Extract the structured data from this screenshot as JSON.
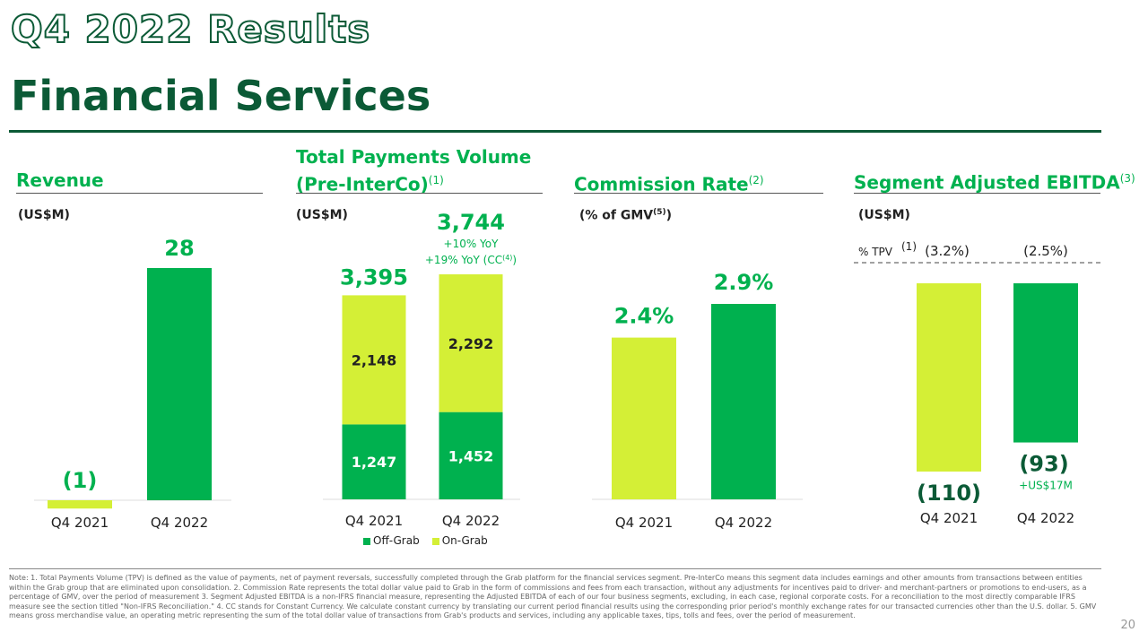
{
  "header": {
    "title_line1": "Q4 2022 Results",
    "title_line2": "Financial Services"
  },
  "colors": {
    "dark_green": "#0b5a36",
    "green": "#00b14f",
    "lime": "#d4ef36"
  },
  "panels": {
    "revenue": {
      "title": "Revenue",
      "unit": "(US$M)"
    },
    "tpv": {
      "title_line1": "Total Payments Volume",
      "title_line2": "(Pre-InterCo)",
      "title_sup": "(1)",
      "unit": "(US$M)",
      "legend_off": "Off-Grab",
      "legend_on": "On-Grab"
    },
    "commission": {
      "title": "Commission Rate",
      "title_sup": "(2)",
      "unit": "(% of GMV",
      "unit_sup": "(5)",
      "unit_close": ")"
    },
    "ebitda": {
      "title": "Segment Adjusted EBITDA",
      "title_sup": "(3)",
      "unit": "(US$M)",
      "tpv_label": "% TPV",
      "tpv_label_sup": "(1)"
    }
  },
  "chart_data": [
    {
      "type": "bar",
      "title": "Revenue",
      "ylabel": "US$M",
      "categories": [
        "Q4 2021",
        "Q4 2022"
      ],
      "values": [
        -1,
        28
      ],
      "value_labels": [
        "(1)",
        "28"
      ]
    },
    {
      "type": "bar",
      "title": "Total Payments Volume (Pre-InterCo)",
      "ylabel": "US$M",
      "stacked": true,
      "categories": [
        "Q4 2021",
        "Q4 2022"
      ],
      "series": [
        {
          "name": "Off-Grab",
          "values": [
            1247,
            1452
          ],
          "labels": [
            "1,247",
            "1,452"
          ]
        },
        {
          "name": "On-Grab",
          "values": [
            2148,
            2292
          ],
          "labels": [
            "2,148",
            "2,292"
          ]
        }
      ],
      "totals": [
        3395,
        3744
      ],
      "total_labels": [
        "3,395",
        "3,744"
      ],
      "annotations": [
        "+10% YoY",
        "+19% YoY (CC",
        "(4)",
        ")"
      ]
    },
    {
      "type": "bar",
      "title": "Commission Rate",
      "ylabel": "% of GMV",
      "categories": [
        "Q4 2021",
        "Q4 2022"
      ],
      "values": [
        2.4,
        2.9
      ],
      "value_labels": [
        "2.4%",
        "2.9%"
      ]
    },
    {
      "type": "bar",
      "title": "Segment Adjusted EBITDA",
      "ylabel": "US$M",
      "categories": [
        "Q4 2021",
        "Q4 2022"
      ],
      "values": [
        -110,
        -93
      ],
      "value_labels": [
        "(110)",
        "(93)"
      ],
      "pct_tpv": [
        "(3.2%)",
        "(2.5%)"
      ],
      "annotations": [
        "+US$17M"
      ]
    }
  ],
  "footnote": "Note: 1. Total Payments Volume (TPV) is defined as the value of payments, net of payment reversals, successfully completed through the Grab platform for the financial services segment. Pre-InterCo means this segment data includes earnings and other amounts from transactions between entities within the Grab group that are eliminated upon consolidation. 2. Commission Rate represents the total dollar value paid to Grab in the form of commissions and fees from each transaction, without any adjustments for incentives paid to driver- and merchant-partners or promotions to end-users, as a percentage of GMV, over the period of measurement 3. Segment Adjusted EBITDA is a non-IFRS financial measure, representing the Adjusted EBITDA of each of our four business segments, excluding, in each case, regional corporate costs. For a reconciliation to the most directly comparable IFRS measure see the section titled \"Non-IFRS Reconciliation.\" 4. CC stands for Constant Currency. We calculate constant currency by translating our current period financial results using the corresponding prior period's monthly exchange rates for our transacted currencies other than the U.S. dollar. 5. GMV means gross merchandise value, an operating metric representing the sum of the total dollar value of transactions from Grab's products and services, including any applicable taxes, tips, tolls and fees, over the period of measurement.",
  "page_number": "20"
}
